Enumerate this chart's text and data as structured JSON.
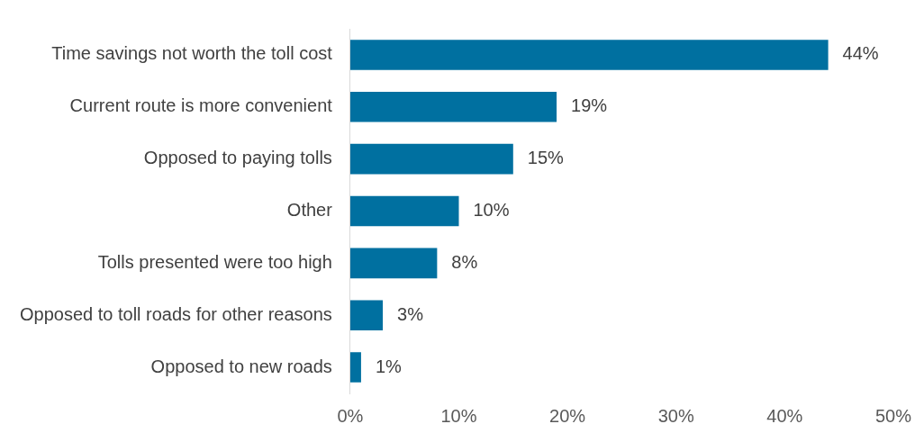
{
  "chart_data": {
    "type": "bar",
    "orientation": "horizontal",
    "categories": [
      "Time savings not worth the toll cost",
      "Current route is more convenient",
      "Opposed to paying tolls",
      "Other",
      "Tolls presented were too high",
      "Opposed to toll roads for other reasons",
      "Opposed to new roads"
    ],
    "values": [
      44,
      19,
      15,
      10,
      8,
      3,
      1
    ],
    "value_labels": [
      "44%",
      "19%",
      "15%",
      "10%",
      "8%",
      "3%",
      "1%"
    ],
    "color": "#0070a0",
    "xlim": [
      0,
      50
    ],
    "xticks": [
      {
        "value": 0,
        "label": "0%"
      },
      {
        "value": 10,
        "label": "10%"
      },
      {
        "value": 20,
        "label": "20%"
      },
      {
        "value": 30,
        "label": "30%"
      },
      {
        "value": 40,
        "label": "40%"
      },
      {
        "value": 50,
        "label": "50%"
      }
    ],
    "grid": false,
    "legend": false
  }
}
